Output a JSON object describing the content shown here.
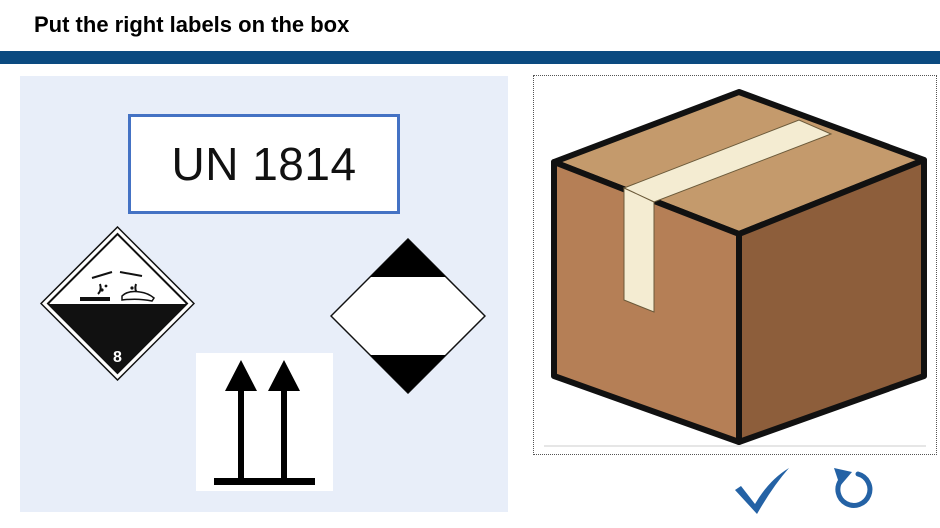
{
  "title": "Put the right labels on the box",
  "colors": {
    "header_rule": "#0b4a80",
    "palette_bg": "#e8eef9",
    "un_border": "#4472c4",
    "box_front": "#b57f56",
    "box_side": "#8d5e3b",
    "box_top": "#c49a6c",
    "tape": "#f4ecd2",
    "action_blue": "#2462a5"
  },
  "labels": {
    "un_number": "UN 1814",
    "hazard_class_number": "8"
  },
  "icons": {
    "corrosive": "corrosive-hazard-icon",
    "limited_quantity": "limited-quantity-icon",
    "this_way_up": "this-way-up-icon",
    "box": "cardboard-box-icon",
    "check": "checkmark-icon",
    "reset": "reset-icon"
  }
}
